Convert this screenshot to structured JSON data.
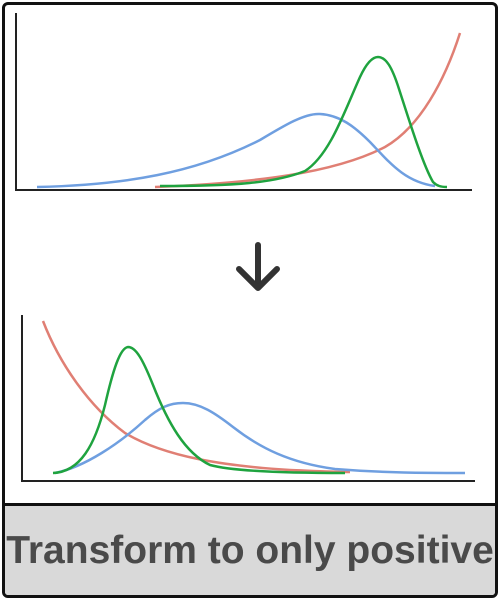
{
  "caption": "Transform to only positive",
  "colors": {
    "red_curve": "#e07f74",
    "blue_curve": "#6f9fe0",
    "green_curve": "#1fa33f",
    "axis": "#222222",
    "arrow": "#333333",
    "caption_text": "#4a4a4a",
    "caption_background": "#d9d9d9"
  },
  "arrow_icon": "arrow-down-icon",
  "top_panel": {
    "curves": [
      "red-exponential-curve",
      "blue-wide-bell-curve",
      "green-narrow-bell-curve"
    ]
  },
  "bottom_panel": {
    "curves": [
      "red-decay-curve",
      "blue-wide-bell-curve",
      "green-narrow-bell-curve"
    ]
  }
}
